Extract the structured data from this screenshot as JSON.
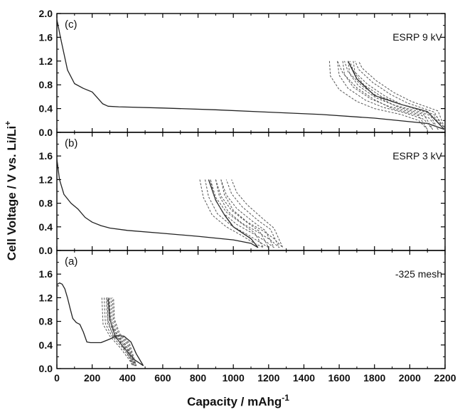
{
  "chart_data": {
    "type": "line",
    "xlabel": "Capacity / mAhg-1",
    "xlabel_base": "Capacity / mAhg",
    "xlabel_sup": "-1",
    "ylabel": "Cell Voltage / V vs. Li/Li+",
    "ylabel_base": "Cell Voltage / V vs. Li/Li",
    "ylabel_sup": "+",
    "xlim": [
      0,
      2200
    ],
    "x_ticks": [
      "0",
      "200",
      "400",
      "600",
      "800",
      "1000",
      "1200",
      "1400",
      "1600",
      "1800",
      "2000",
      "2200"
    ],
    "colors": {
      "first_cycle": "#222222",
      "subsequent_cycles": "#555555",
      "frame": "#000000"
    },
    "panels": [
      {
        "tag": "(c)",
        "label": "ESRP 9 kV",
        "ylim": [
          0,
          2.0
        ],
        "y_ticks": [
          "0.0",
          "0.4",
          "0.8",
          "1.2",
          "1.6",
          "2.0"
        ],
        "series": [
          {
            "style": "solid",
            "x": [
              0,
              20,
              60,
              100,
              150,
              200,
              230,
              260,
              290,
              350,
              600,
              900,
              1200,
              1500,
              1800,
              2100,
              2195
            ],
            "y": [
              1.9,
              1.6,
              1.05,
              0.82,
              0.74,
              0.68,
              0.58,
              0.48,
              0.44,
              0.43,
              0.41,
              0.38,
              0.34,
              0.3,
              0.24,
              0.15,
              0.05
            ]
          },
          {
            "style": "solid",
            "x": [
              2195,
              2100,
              1950,
              1800,
              1700,
              1650
            ],
            "y": [
              0.05,
              0.35,
              0.47,
              0.62,
              0.9,
              1.2
            ]
          },
          {
            "style": "dashed",
            "x": [
              1545,
              1550,
              1600,
              1700,
              1800,
              1950,
              2050,
              2100,
              2050,
              1900,
              1800,
              1700,
              1620,
              1590
            ],
            "y": [
              1.2,
              0.95,
              0.72,
              0.52,
              0.4,
              0.3,
              0.2,
              0.05,
              0.28,
              0.4,
              0.55,
              0.75,
              1.0,
              1.2
            ]
          },
          {
            "style": "dashed",
            "x": [
              1590,
              1600,
              1650,
              1750,
              1850,
              1980,
              2080,
              2130,
              2080,
              1930,
              1830,
              1730,
              1650,
              1630
            ],
            "y": [
              1.2,
              0.96,
              0.74,
              0.54,
              0.42,
              0.32,
              0.22,
              0.05,
              0.3,
              0.43,
              0.58,
              0.78,
              1.02,
              1.2
            ]
          },
          {
            "style": "dashed",
            "x": [
              1620,
              1630,
              1680,
              1780,
              1880,
              2010,
              2110,
              2160,
              2110,
              1960,
              1860,
              1760,
              1680,
              1660
            ],
            "y": [
              1.2,
              0.97,
              0.76,
              0.56,
              0.44,
              0.34,
              0.24,
              0.05,
              0.32,
              0.46,
              0.61,
              0.81,
              1.04,
              1.2
            ]
          },
          {
            "style": "dashed",
            "x": [
              1650,
              1660,
              1710,
              1810,
              1910,
              2040,
              2140,
              2190,
              2140,
              1990,
              1890,
              1790,
              1710,
              1690
            ],
            "y": [
              1.2,
              0.98,
              0.78,
              0.58,
              0.46,
              0.36,
              0.26,
              0.05,
              0.34,
              0.49,
              0.64,
              0.84,
              1.06,
              1.2
            ]
          },
          {
            "style": "dashed",
            "x": [
              1680,
              1690,
              1740,
              1840,
              1940,
              2070,
              2150,
              2200,
              2160,
              2010,
              1910,
              1810,
              1730,
              1710
            ],
            "y": [
              1.2,
              0.99,
              0.8,
              0.6,
              0.48,
              0.38,
              0.28,
              0.05,
              0.36,
              0.52,
              0.67,
              0.87,
              1.08,
              1.2
            ]
          }
        ]
      },
      {
        "tag": "(b)",
        "label": "ESRP 3 kV",
        "ylim": [
          0,
          2.0
        ],
        "y_ticks": [
          "0.0",
          "0.4",
          "0.8",
          "1.2",
          "1.6"
        ],
        "series": [
          {
            "style": "solid",
            "x": [
              0,
              15,
              40,
              80,
              120,
              160,
              200,
              250,
              300,
              400,
              600,
              800,
              1000,
              1100,
              1140
            ],
            "y": [
              1.55,
              1.2,
              0.95,
              0.8,
              0.7,
              0.56,
              0.48,
              0.42,
              0.38,
              0.34,
              0.29,
              0.24,
              0.18,
              0.12,
              0.05
            ]
          },
          {
            "style": "solid",
            "x": [
              1140,
              1100,
              1000,
              950,
              900,
              860
            ],
            "y": [
              0.05,
              0.2,
              0.4,
              0.6,
              0.85,
              1.2
            ]
          },
          {
            "style": "dashed",
            "x": [
              810,
              830,
              880,
              960,
              1050,
              1120,
              1170,
              1120,
              1050,
              960,
              900,
              870
            ],
            "y": [
              1.2,
              0.9,
              0.6,
              0.4,
              0.25,
              0.12,
              0.05,
              0.3,
              0.45,
              0.65,
              0.9,
              1.2
            ]
          },
          {
            "style": "dashed",
            "x": [
              840,
              860,
              910,
              990,
              1080,
              1150,
              1200,
              1150,
              1080,
              990,
              930,
              900
            ],
            "y": [
              1.2,
              0.91,
              0.62,
              0.42,
              0.27,
              0.14,
              0.05,
              0.32,
              0.47,
              0.68,
              0.92,
              1.2
            ]
          },
          {
            "style": "dashed",
            "x": [
              870,
              890,
              940,
              1020,
              1110,
              1180,
              1230,
              1180,
              1110,
              1020,
              960,
              930
            ],
            "y": [
              1.2,
              0.92,
              0.64,
              0.44,
              0.29,
              0.16,
              0.05,
              0.34,
              0.49,
              0.71,
              0.94,
              1.2
            ]
          },
          {
            "style": "dashed",
            "x": [
              900,
              920,
              970,
              1050,
              1140,
              1210,
              1260,
              1210,
              1140,
              1050,
              990,
              960
            ],
            "y": [
              1.2,
              0.93,
              0.66,
              0.46,
              0.31,
              0.18,
              0.05,
              0.36,
              0.51,
              0.74,
              0.96,
              1.2
            ]
          },
          {
            "style": "dashed",
            "x": [
              930,
              950,
              1000,
              1080,
              1170,
              1230,
              1280,
              1230,
              1170,
              1080,
              1020,
              990
            ],
            "y": [
              1.2,
              0.94,
              0.68,
              0.48,
              0.33,
              0.2,
              0.05,
              0.38,
              0.53,
              0.77,
              0.98,
              1.2
            ]
          }
        ]
      },
      {
        "tag": "(a)",
        "label": "-325 mesh",
        "ylim": [
          0,
          2.0
        ],
        "y_ticks": [
          "0.0",
          "0.4",
          "0.8",
          "1.2",
          "1.6"
        ],
        "series": [
          {
            "style": "solid",
            "x": [
              0,
              15,
              30,
              45,
              60,
              75,
              90,
              110,
              130,
              150,
              170,
              190,
              250,
              300,
              340,
              380,
              420,
              450,
              490
            ],
            "y": [
              1.42,
              1.45,
              1.43,
              1.35,
              1.2,
              1.02,
              0.85,
              0.78,
              0.75,
              0.62,
              0.45,
              0.44,
              0.44,
              0.5,
              0.56,
              0.55,
              0.45,
              0.25,
              0.05
            ]
          },
          {
            "style": "solid",
            "x": [
              490,
              440,
              380,
              330,
              300,
              290
            ],
            "y": [
              0.05,
              0.15,
              0.35,
              0.55,
              0.85,
              1.2
            ]
          },
          {
            "style": "dashed",
            "x": [
              255,
              262,
              300,
              360,
              410,
              430,
              380,
              320,
              290,
              285
            ],
            "y": [
              1.2,
              0.75,
              0.55,
              0.35,
              0.15,
              0.05,
              0.4,
              0.55,
              0.8,
              1.2
            ]
          },
          {
            "style": "dashed",
            "x": [
              268,
              275,
              310,
              370,
              418,
              436,
              390,
              332,
              302,
              297
            ],
            "y": [
              1.2,
              0.76,
              0.56,
              0.36,
              0.16,
              0.05,
              0.41,
              0.56,
              0.81,
              1.2
            ]
          },
          {
            "style": "dashed",
            "x": [
              280,
              287,
              320,
              378,
              424,
              442,
              398,
              342,
              312,
              307
            ],
            "y": [
              1.2,
              0.77,
              0.57,
              0.37,
              0.17,
              0.05,
              0.42,
              0.57,
              0.82,
              1.2
            ]
          },
          {
            "style": "dashed",
            "x": [
              290,
              297,
              328,
              385,
              428,
              446,
              404,
              350,
              320,
              315
            ],
            "y": [
              1.2,
              0.78,
              0.58,
              0.38,
              0.18,
              0.05,
              0.43,
              0.58,
              0.83,
              1.2
            ]
          },
          {
            "style": "dashed",
            "x": [
              298,
              305,
              336,
              390,
              432,
              450,
              410,
              356,
              326,
              321
            ],
            "y": [
              1.2,
              0.79,
              0.59,
              0.39,
              0.19,
              0.05,
              0.44,
              0.59,
              0.84,
              1.2
            ]
          }
        ]
      }
    ]
  }
}
